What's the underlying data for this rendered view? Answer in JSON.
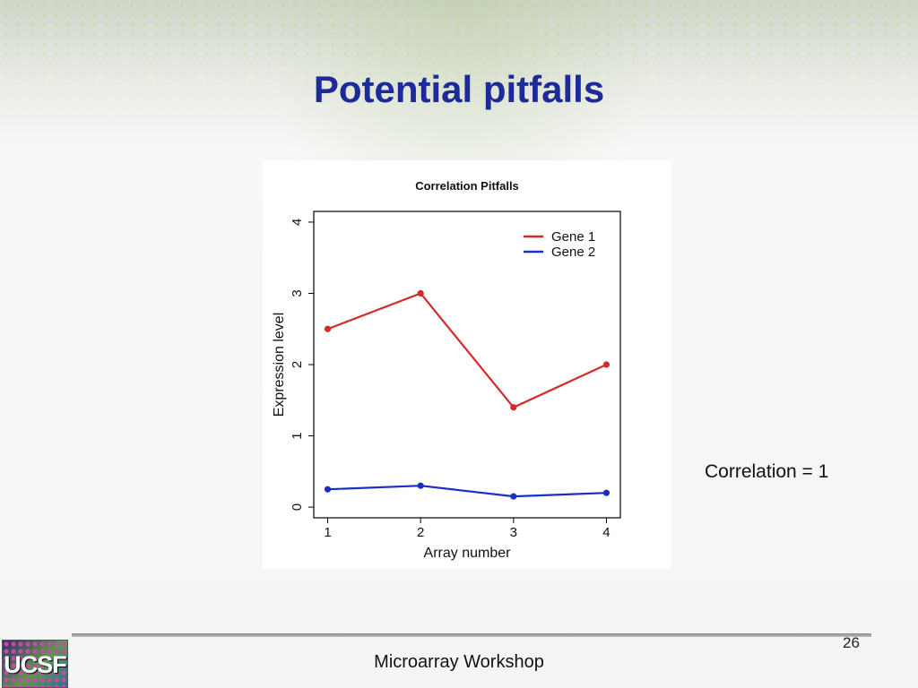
{
  "slide": {
    "title": "Potential pitfalls",
    "side_note": "Correlation = 1",
    "page_number": "26",
    "footer": "Microarray Workshop",
    "logo_text": "UCSF"
  },
  "chart_data": {
    "type": "line",
    "title": "Correlation Pitfalls",
    "xlabel": "Array number",
    "ylabel": "Expression level",
    "x": [
      1,
      2,
      3,
      4
    ],
    "xticks": [
      1,
      2,
      3,
      4
    ],
    "yticks": [
      0,
      1,
      2,
      3,
      4
    ],
    "xlim": [
      0.85,
      4.15
    ],
    "ylim": [
      -0.15,
      4.15
    ],
    "legend_position": "top-right",
    "grid": false,
    "series": [
      {
        "name": "Gene 1",
        "color": "#d42a2a",
        "values": [
          2.5,
          3.0,
          1.4,
          2.0
        ]
      },
      {
        "name": "Gene 2",
        "color": "#1a2fc4",
        "values": [
          0.25,
          0.3,
          0.15,
          0.2
        ]
      }
    ]
  }
}
